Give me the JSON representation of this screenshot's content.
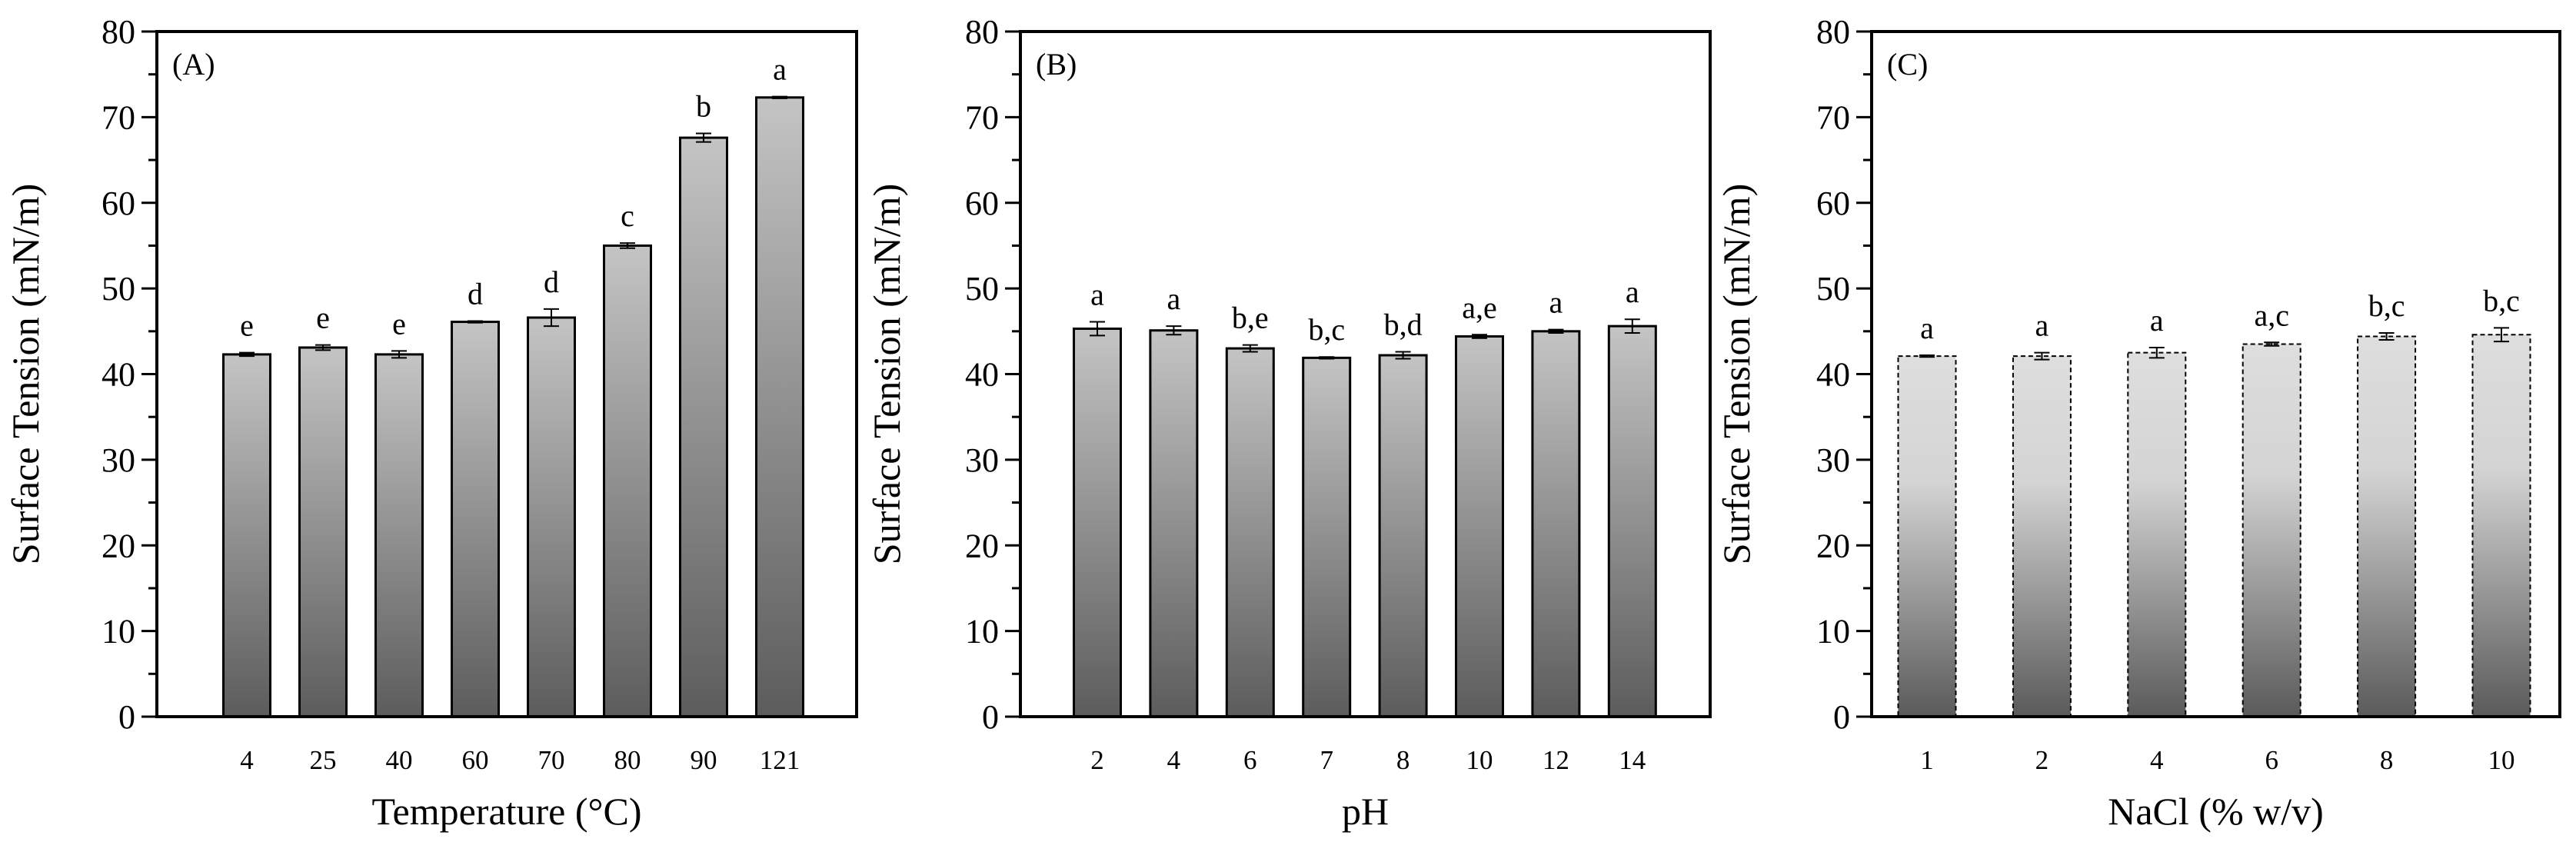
{
  "chart_data": [
    {
      "type": "bar",
      "panel_label": "(A)",
      "xlabel": "Temperature (°C)",
      "ylabel": "Surface Tension (mN/m)",
      "ylim": [
        0,
        80
      ],
      "yticks": [
        "0",
        "10",
        "20",
        "30",
        "40",
        "50",
        "60",
        "70",
        "80"
      ],
      "categories": [
        "4",
        "25",
        "40",
        "60",
        "70",
        "80",
        "90",
        "121"
      ],
      "values": [
        42.3,
        43.1,
        42.3,
        46.1,
        46.6,
        55.0,
        67.6,
        72.3
      ],
      "errors": [
        0.2,
        0.3,
        0.4,
        0.1,
        1.0,
        0.3,
        0.5,
        0.1
      ],
      "letters": [
        "e",
        "e",
        "e",
        "d",
        "d",
        "c",
        "b",
        "a"
      ]
    },
    {
      "type": "bar",
      "panel_label": "(B)",
      "xlabel": "pH",
      "ylabel": "Surface Tension (mN/m)",
      "ylim": [
        0,
        80
      ],
      "yticks": [
        "0",
        "10",
        "20",
        "30",
        "40",
        "50",
        "60",
        "70",
        "80"
      ],
      "categories": [
        "2",
        "4",
        "6",
        "7",
        "8",
        "10",
        "12",
        "14"
      ],
      "values": [
        45.3,
        45.1,
        43.0,
        41.9,
        42.2,
        44.4,
        45.0,
        45.6
      ],
      "errors": [
        0.8,
        0.5,
        0.4,
        0.1,
        0.4,
        0.2,
        0.2,
        0.8
      ],
      "letters": [
        "a",
        "a",
        "b,e",
        "b,c",
        "b,d",
        "a,e",
        "a",
        "a"
      ]
    },
    {
      "type": "bar",
      "panel_label": "(C)",
      "xlabel": "NaCl (% w/v)",
      "ylabel": "Surface Tension (mN/m)",
      "ylim": [
        0,
        80
      ],
      "yticks": [
        "0",
        "10",
        "20",
        "30",
        "40",
        "50",
        "60",
        "70",
        "80"
      ],
      "categories": [
        "1",
        "2",
        "4",
        "6",
        "8",
        "10"
      ],
      "values": [
        42.1,
        42.1,
        42.5,
        43.5,
        44.4,
        44.6
      ],
      "errors": [
        0.1,
        0.4,
        0.6,
        0.2,
        0.4,
        0.8
      ],
      "letters": [
        "a",
        "a",
        "a",
        "a,c",
        "b,c",
        "b,c"
      ]
    }
  ]
}
